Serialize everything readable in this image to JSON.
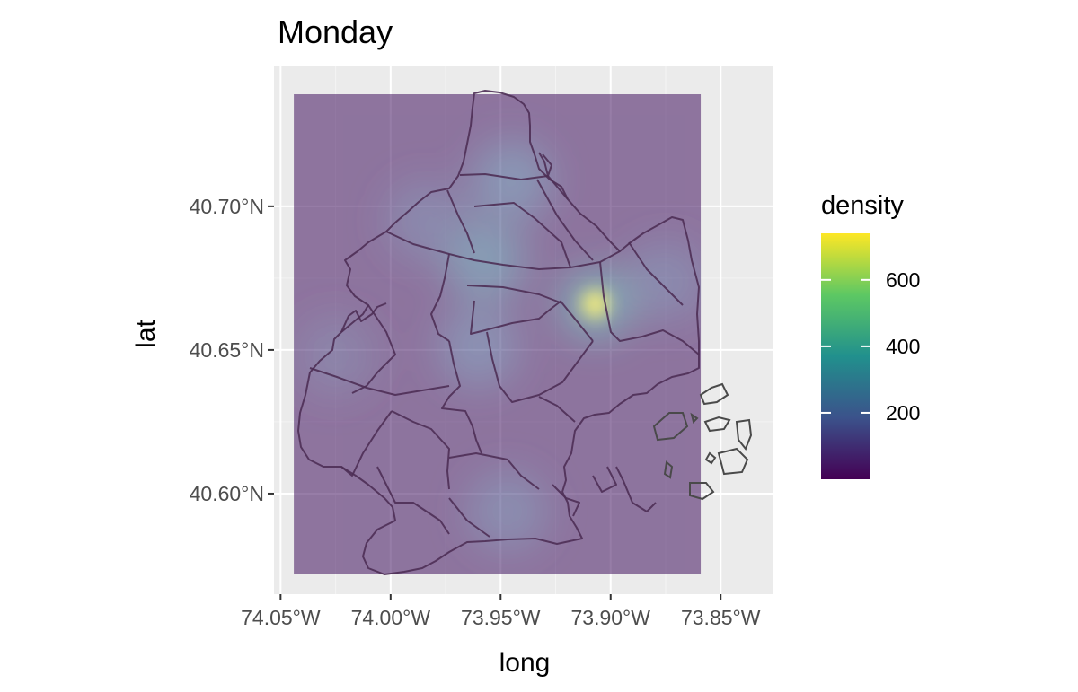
{
  "chart_data": {
    "type": "heatmap",
    "title": "Monday",
    "xlabel": "long",
    "ylabel": "lat",
    "x_ticks": [
      {
        "value": -74.05,
        "label": "74.05°W"
      },
      {
        "value": -74.0,
        "label": "74.00°W"
      },
      {
        "value": -73.95,
        "label": "73.95°W"
      },
      {
        "value": -73.9,
        "label": "73.90°W"
      },
      {
        "value": -73.85,
        "label": "73.85°W"
      }
    ],
    "y_ticks": [
      {
        "value": 40.7,
        "label": "40.70°N"
      },
      {
        "value": 40.65,
        "label": "40.65°N"
      },
      {
        "value": 40.6,
        "label": "40.60°N"
      }
    ],
    "xlim": [
      -74.053,
      -73.826
    ],
    "ylim": [
      40.565,
      40.749
    ],
    "density_extent": {
      "x": [
        -74.044,
        -73.859
      ],
      "y": [
        40.572,
        40.739
      ]
    },
    "fill_alpha": 0.55,
    "grid": true,
    "legend": {
      "title": "density",
      "position": "right",
      "range": [
        0,
        740
      ],
      "ticks": [
        {
          "value": 200,
          "label": "200"
        },
        {
          "value": 400,
          "label": "400"
        },
        {
          "value": 600,
          "label": "600"
        }
      ],
      "colormap": "viridis",
      "colors": [
        "#440154",
        "#3b528b",
        "#21908d",
        "#5dc863",
        "#fde725"
      ]
    },
    "hotspots": [
      {
        "x": -73.907,
        "y": 40.666,
        "density": 720
      },
      {
        "x": -73.957,
        "y": 40.681,
        "density": 230
      },
      {
        "x": -73.945,
        "y": 40.709,
        "density": 190
      },
      {
        "x": -73.96,
        "y": 40.651,
        "density": 170
      },
      {
        "x": -73.947,
        "y": 40.594,
        "density": 150
      },
      {
        "x": -73.875,
        "y": 40.674,
        "density": 140
      },
      {
        "x": -73.984,
        "y": 40.695,
        "density": 130
      },
      {
        "x": -74.025,
        "y": 40.648,
        "density": 110
      }
    ],
    "background_density": 40,
    "boundary_color": "#4e2f55",
    "panel_background": "#ebebeb"
  }
}
